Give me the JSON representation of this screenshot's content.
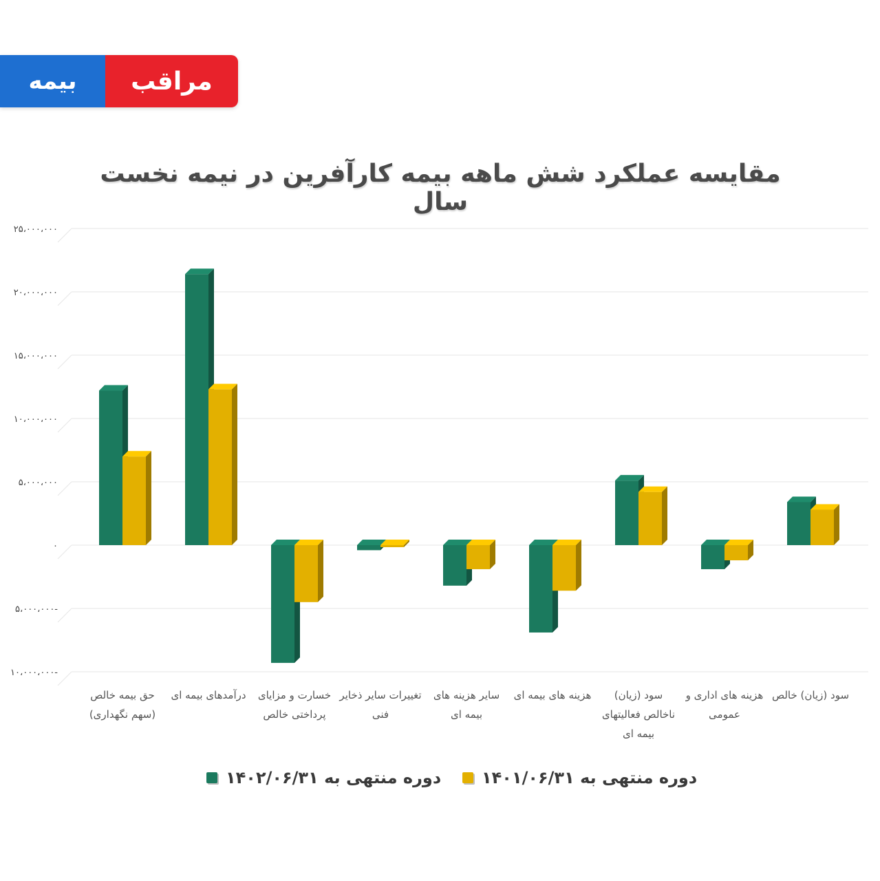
{
  "logo": {
    "blue_text": "بیمه",
    "red_text": "مراقب"
  },
  "chart_data": {
    "type": "bar",
    "title": "مقایسه عملکرد شش ماهه بیمه کارآفرین در نیمه نخست سال",
    "categories": [
      "حق بیمه خالص (سهم نگهداری)",
      "درآمدهای بیمه ای",
      "خسارت و مزایای پرداختی خالص",
      "تغییرات سایر ذخایر فنی",
      "سایر هزینه های بیمه ای",
      "هزینه های بیمه ای",
      "سود (زیان) ناخالص فعالیتهای بیمه ای",
      "هزینه های اداری و عمومی",
      "سود (زیان) خالص"
    ],
    "series": [
      {
        "name": "دوره منتهی به ۱۴۰۲/۰۶/۳۱",
        "color": "#1b7a5e",
        "values": [
          12200000,
          21400000,
          -9300000,
          -400000,
          -3200000,
          -6900000,
          5100000,
          -1900000,
          3400000
        ]
      },
      {
        "name": "دوره منتهی به ۱۴۰۱/۰۶/۳۱",
        "color": "#e3b000",
        "values": [
          7000000,
          12300000,
          -4500000,
          -100000,
          -1900000,
          -3600000,
          4200000,
          -1200000,
          2800000
        ]
      }
    ],
    "ylim": [
      -10000000,
      25000000
    ],
    "yticks": [
      25000000,
      20000000,
      15000000,
      10000000,
      5000000,
      0,
      -5000000,
      -10000000
    ],
    "ytick_labels": [
      "۲۵،۰۰۰،۰۰۰",
      "۲۰،۰۰۰،۰۰۰",
      "۱۵،۰۰۰،۰۰۰",
      "۱۰،۰۰۰،۰۰۰",
      "۵،۰۰۰،۰۰۰",
      "۰",
      "۵،۰۰۰،۰۰۰-",
      "۱۰،۰۰۰،۰۰۰-"
    ],
    "grid": true,
    "legend_position": "bottom"
  }
}
